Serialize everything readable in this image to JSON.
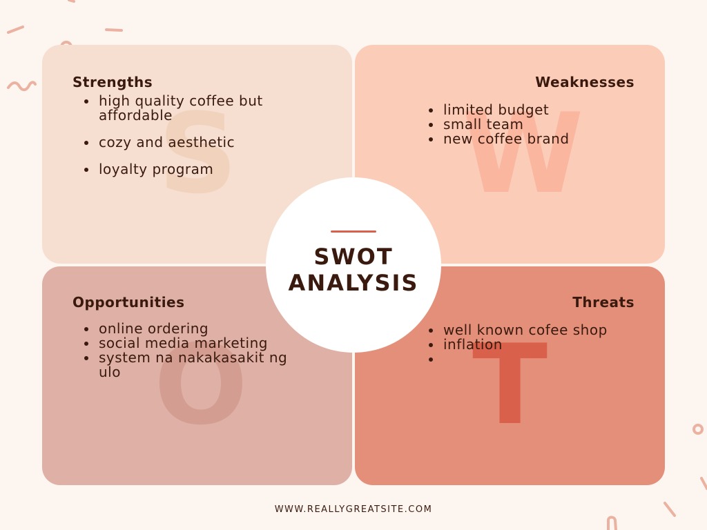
{
  "title": {
    "line1": "SWOT",
    "line2": "ANALYSIS"
  },
  "quadrants": {
    "strengths": {
      "letter": "S",
      "heading": "Strengths",
      "items": [
        "high quality coffee but affordable",
        "cozy and aesthetic",
        "loyalty program"
      ]
    },
    "weaknesses": {
      "letter": "W",
      "heading": "Weaknesses",
      "items": [
        "limited budget",
        "small team",
        "new coffee brand"
      ]
    },
    "opportunities": {
      "letter": "O",
      "heading": "Opportunities",
      "items": [
        "online ordering",
        "social media marketing",
        "system na nakakasakit ng ulo"
      ]
    },
    "threats": {
      "letter": "T",
      "heading": "Threats",
      "items": [
        "well known cofee shop",
        "inflation",
        ""
      ]
    }
  },
  "footer": {
    "url": "WWW.REALLYGREATSITE.COM"
  },
  "colors": {
    "background": "#fdf5f0",
    "strengths": "#f6dfd0",
    "weaknesses": "#fbcdb9",
    "opportunities": "#dfb1a6",
    "threats": "#e48f7a",
    "accent": "#d9604a",
    "text": "#3a1a0e"
  }
}
